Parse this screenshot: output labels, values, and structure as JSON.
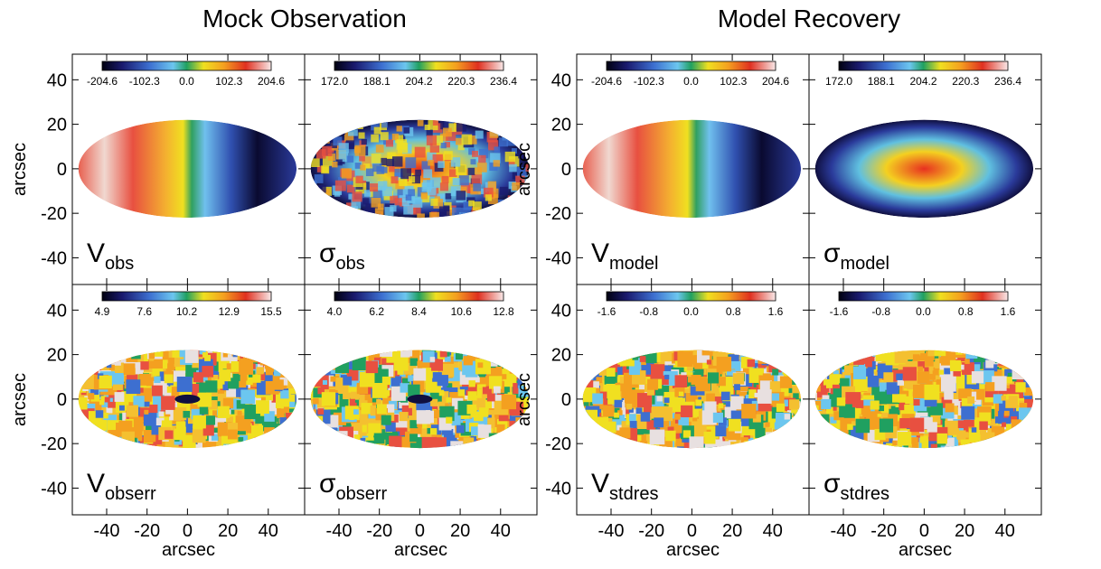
{
  "figure": {
    "axes": {
      "xlabel": "arcsec",
      "ylabel": "arcsec",
      "xlim": [
        -57,
        58
      ],
      "ylim": [
        -52,
        51.5
      ],
      "xticks": [
        -40,
        -20,
        0,
        20,
        40
      ],
      "yticks": [
        -40,
        -20,
        0,
        20,
        40
      ]
    },
    "groups": [
      {
        "title": "Mock Observation",
        "panels": [
          {
            "symbol": "V",
            "subscript": "obs",
            "colorbar_labels": [
              "-204.6",
              "-102.3",
              "0.0",
              "102.3",
              "204.6"
            ]
          },
          {
            "symbol": "σ",
            "subscript": "obs",
            "colorbar_labels": [
              "172.0",
              "188.1",
              "204.2",
              "220.3",
              "236.4"
            ]
          },
          {
            "symbol": "V",
            "subscript": "obserr",
            "colorbar_labels": [
              "4.9",
              "7.6",
              "10.2",
              "12.9",
              "15.5"
            ]
          },
          {
            "symbol": "σ",
            "subscript": "obserr",
            "colorbar_labels": [
              "4.0",
              "6.2",
              "8.4",
              "10.6",
              "12.8"
            ]
          }
        ]
      },
      {
        "title": "Model Recovery",
        "panels": [
          {
            "symbol": "V",
            "subscript": "model",
            "colorbar_labels": [
              "-204.6",
              "-102.3",
              "0.0",
              "102.3",
              "204.6"
            ]
          },
          {
            "symbol": "σ",
            "subscript": "model",
            "colorbar_labels": [
              "172.0",
              "188.1",
              "204.2",
              "220.3",
              "236.4"
            ]
          },
          {
            "symbol": "V",
            "subscript": "stdres",
            "colorbar_labels": [
              "-1.6",
              "-0.8",
              "0.0",
              "0.8",
              "1.6"
            ]
          },
          {
            "symbol": "σ",
            "subscript": "stdres",
            "colorbar_labels": [
              "-1.6",
              "-0.8",
              "0.0",
              "0.8",
              "1.6"
            ]
          }
        ]
      }
    ]
  }
}
